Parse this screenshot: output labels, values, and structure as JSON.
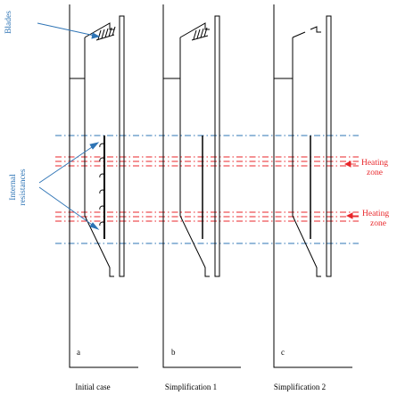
{
  "labels": {
    "blades": "Blades",
    "internal_line1": "Internal",
    "internal_line2": "resistances",
    "heating1_line1": "Heating",
    "heating1_line2": "zone",
    "heating2_line1": "Heating",
    "heating2_line2": "zone"
  },
  "panels": [
    {
      "letter": "a",
      "caption": "Initial case"
    },
    {
      "letter": "b",
      "caption": "Simplification 1"
    },
    {
      "letter": "c",
      "caption": "Simplification 2"
    }
  ],
  "colors": {
    "annotation_blue": "#2e74b5",
    "heating_red": "#e8262a",
    "line_black": "#000000"
  }
}
